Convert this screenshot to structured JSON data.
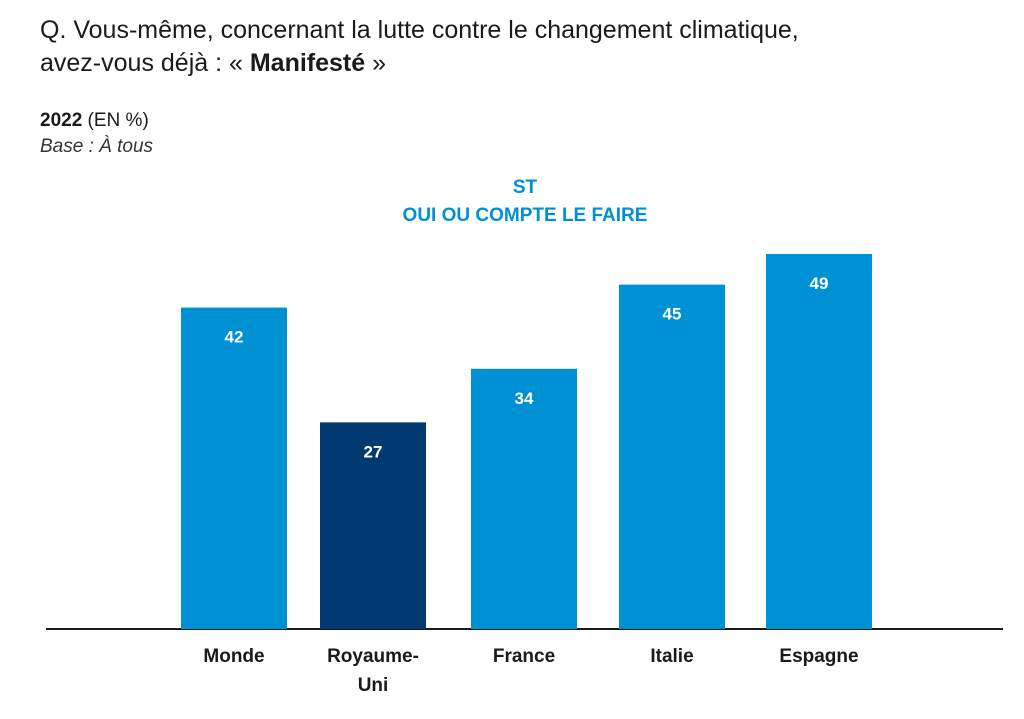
{
  "question": {
    "line1": "Q. Vous-même, concernant la lutte contre le changement climatique,",
    "line2_prefix": "avez-vous déjà : « ",
    "line2_bold": "Manifesté",
    "line2_suffix": " »"
  },
  "meta": {
    "year": "2022",
    "unit": " (EN %)",
    "base": "Base : À tous"
  },
  "chart_data": {
    "type": "bar",
    "title_line1": "ST",
    "title_line2": "OUI OU COMPTE LE FAIRE",
    "categories": [
      [
        "Monde"
      ],
      [
        "Royaume-",
        "Uni"
      ],
      [
        "France"
      ],
      [
        "Italie"
      ],
      [
        "Espagne"
      ]
    ],
    "values": [
      42,
      27,
      34,
      45,
      49
    ],
    "colors": [
      "#0090d4",
      "#003a70",
      "#0090d4",
      "#0090d4",
      "#0090d4"
    ],
    "title_color": "#0090d4",
    "axis_color": "#1a1a1a",
    "ylim": [
      0,
      50
    ]
  }
}
